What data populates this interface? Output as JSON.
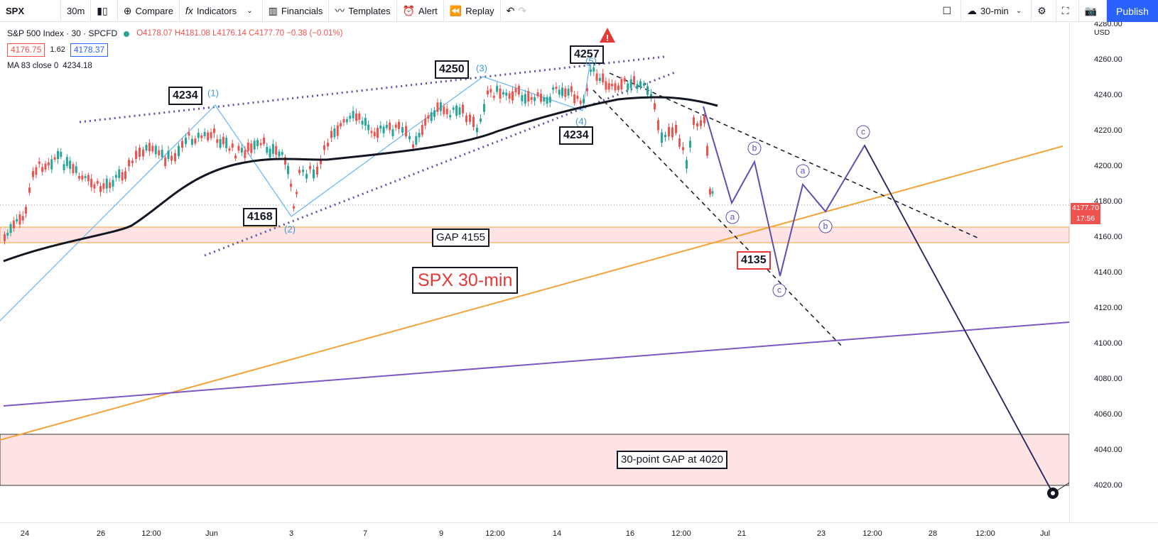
{
  "toolbar": {
    "symbol": "SPX",
    "interval": "30m",
    "compare": "Compare",
    "indicators": "Indicators",
    "financials": "Financials",
    "templates": "Templates",
    "alert": "Alert",
    "replay": "Replay",
    "layout_name": "30-min",
    "publish": "Publish"
  },
  "legend": {
    "title": "S&P 500 Index · 30 · SPCFD",
    "ohlc": "O4178.07  H4181.08  L4176.14  C4177.70  −0.38 (−0.01%)",
    "sell": "4176.75",
    "spread": "1.62",
    "buy": "4178.37",
    "ma_label": "MA 83 close 0",
    "ma_value": "4234.18"
  },
  "price_axis": {
    "currency": "USD",
    "labels": [
      "4280.00",
      "4260.00",
      "4240.00",
      "4220.00",
      "4200.00",
      "4180.00",
      "4160.00",
      "4140.00",
      "4120.00",
      "4100.00",
      "4080.00",
      "4060.00",
      "4040.00",
      "4020.00"
    ],
    "last_price": "4177.70",
    "countdown": "17:56"
  },
  "time_axis": {
    "labels": [
      "24",
      "26",
      "12:00",
      "Jun",
      "3",
      "7",
      "9",
      "12:00",
      "14",
      "16",
      "12:00",
      "21",
      "23",
      "12:00",
      "28",
      "12:00",
      "Jul"
    ]
  },
  "annotations": {
    "labels": [
      "4234",
      "4250",
      "4257",
      "4168",
      "4234",
      "4135",
      "GAP 4155",
      "30-point GAP at 4020"
    ],
    "title": "SPX 30-min",
    "waves": [
      "(1)",
      "(2)",
      "(3)",
      "(4)",
      "(5)"
    ],
    "abc": [
      "a",
      "b",
      "c",
      "a",
      "b",
      "c"
    ]
  },
  "colors": {
    "accent": "#2962ff",
    "down": "#ef5350",
    "up": "#26a69a",
    "gap_fill": "#fde3e3",
    "wave_line": "#5d4fb3",
    "trend_orange": "#f2a33a"
  }
}
